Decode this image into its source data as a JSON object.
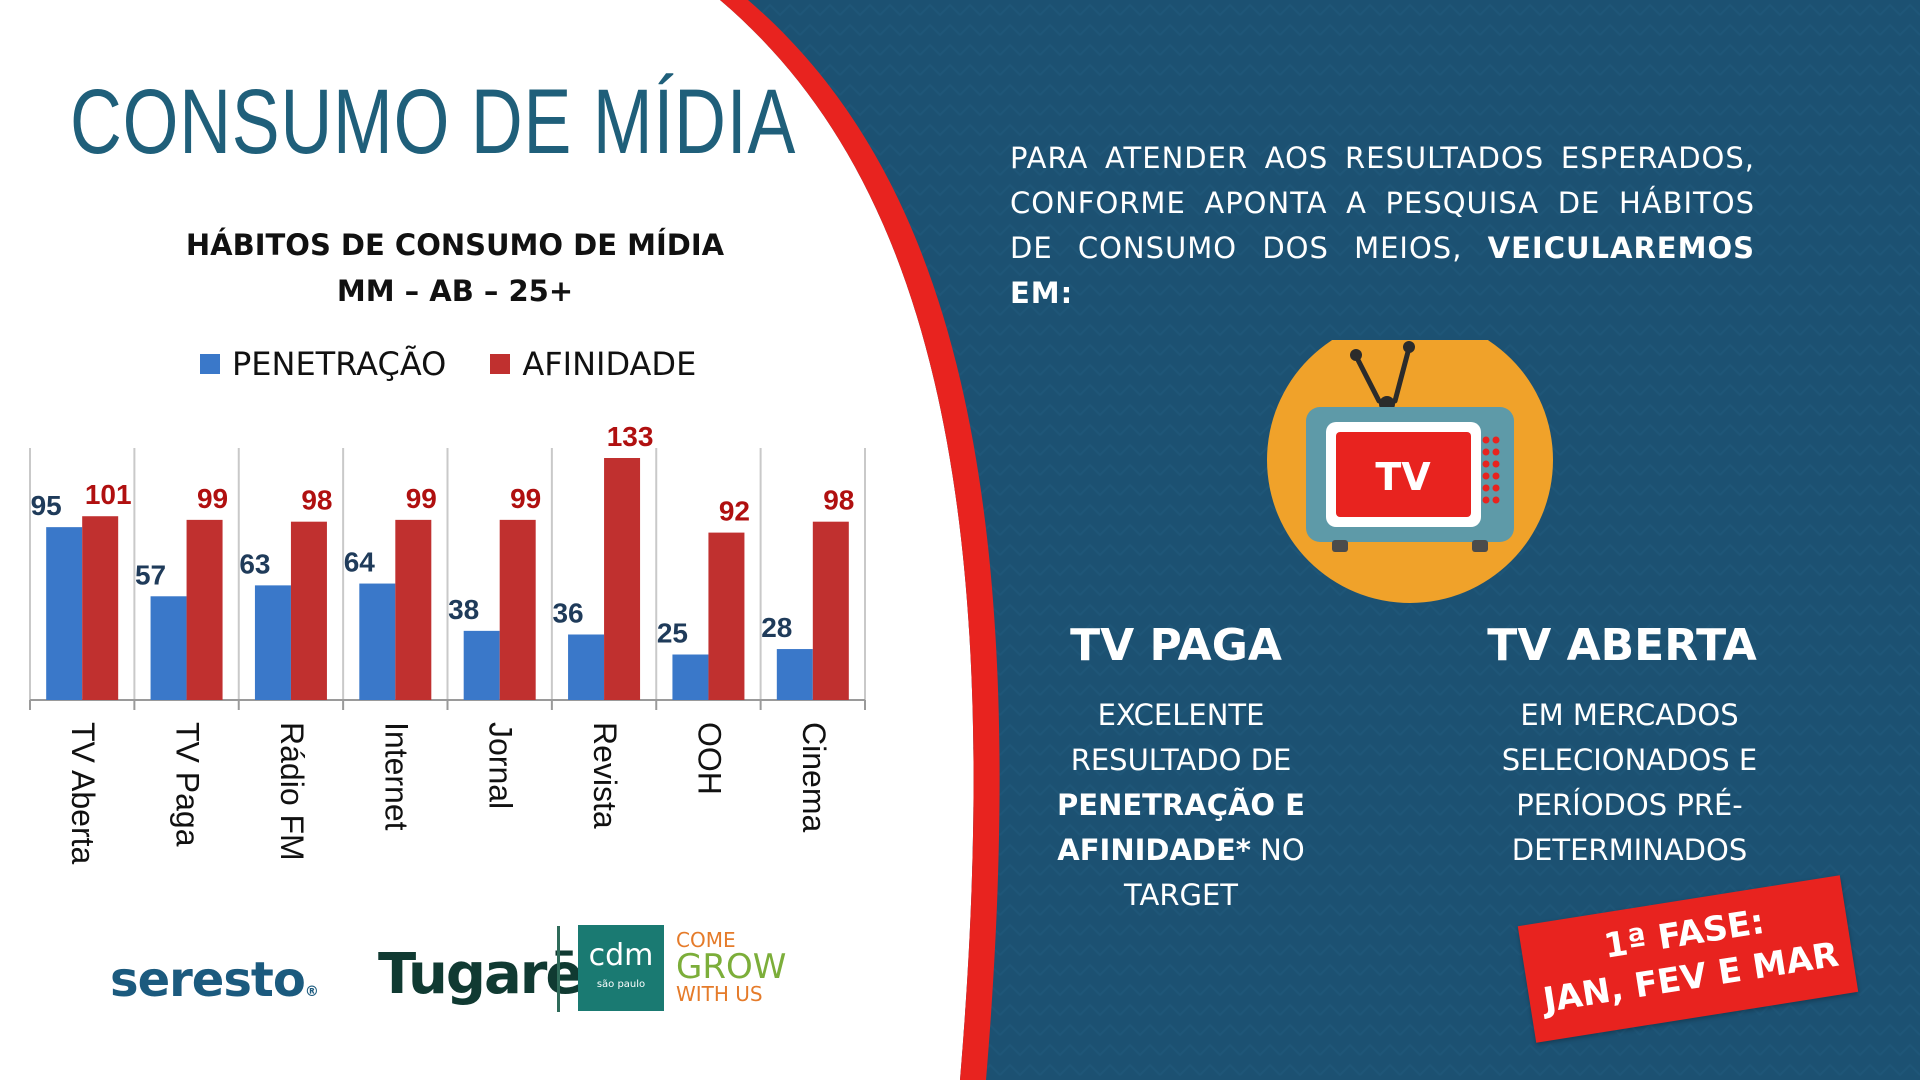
{
  "title": "CONSUMO DE MÍDIA",
  "chart_title_line1": "HÁBITOS DE CONSUMO DE MÍDIA",
  "chart_title_line2": "MM – AB – 25+",
  "colors": {
    "penetracao": "#3a78c9",
    "afinidade": "#c0302f",
    "navy": "#1c5172",
    "accent_red": "#e8231f",
    "tv_circle": "#f0a22a"
  },
  "chart_data": {
    "type": "bar",
    "title": "HÁBITOS DE CONSUMO DE MÍDIA",
    "subtitle": "MM – AB – 25+",
    "categories": [
      "TV Aberta",
      "TV Paga",
      "Rádio FM",
      "Internet",
      "Jornal",
      "Revista",
      "OOH",
      "Cinema"
    ],
    "series": [
      {
        "name": "PENETRAÇÃO",
        "values": [
          95,
          57,
          63,
          64,
          38,
          36,
          25,
          28
        ]
      },
      {
        "name": "AFINIDADE",
        "values": [
          101,
          99,
          98,
          99,
          99,
          133,
          92,
          98
        ]
      }
    ],
    "ylim": [
      0,
      140
    ],
    "legend": "top",
    "grid": false
  },
  "right": {
    "intro_plain": "PARA ATENDER AOS RESULTADOS ESPERADOS, CONFORME APONTA A PESQUISA DE HÁBITOS DE CONSUMO DOS MEIOS, ",
    "intro_bold": "VEICULAREMOS EM:",
    "tv_label": "TV",
    "col1": {
      "title": "TV PAGA",
      "line1": "EXCELENTE",
      "line2": "RESULTADO DE",
      "line3_bold": "PENETRAÇÃO E",
      "line4_bold": "AFINIDADE*",
      "line4_plain": " NO",
      "line5": "TARGET"
    },
    "col2": {
      "title": "TV ABERTA",
      "line1": "EM MERCADOS",
      "line2": "SELECIONADOS E",
      "line3": "PERÍODOS PRÉ-",
      "line4": "DETERMINADOS"
    },
    "phase_line1": "1ª FASE:",
    "phase_line2": "JAN, FEV E MAR"
  },
  "logos": {
    "seresto": "seresto",
    "seresto_reg": "®",
    "tugare": "Tugarē",
    "cdm_big": "cdm",
    "cdm_small": "são paulo",
    "grow_l1": "COME",
    "grow_l2": "GROW",
    "grow_l3": "WITH US"
  }
}
